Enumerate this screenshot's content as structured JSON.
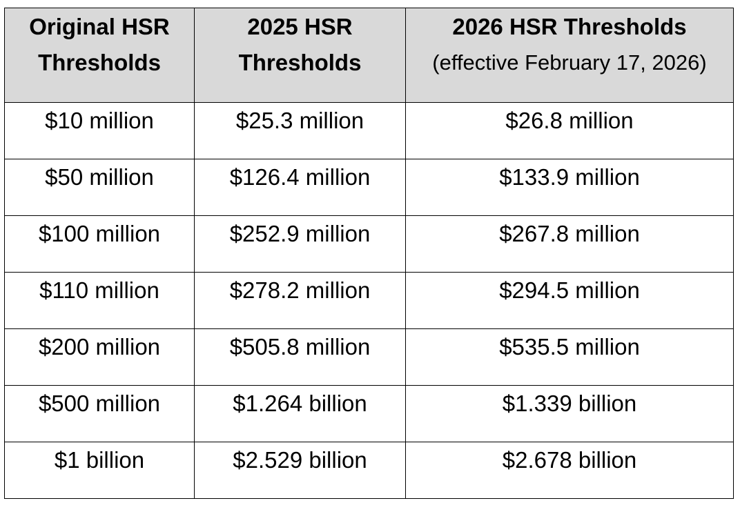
{
  "table": {
    "header": [
      [
        "Original HSR",
        "Thresholds"
      ],
      [
        "2025 HSR",
        "Thresholds"
      ],
      [
        "2026 HSR Thresholds",
        "(effective February 17, 2026)"
      ]
    ],
    "rows": [
      [
        "$10 million",
        "$25.3 million",
        "$26.8 million"
      ],
      [
        "$50 million",
        "$126.4 million",
        "$133.9 million"
      ],
      [
        "$100 million",
        "$252.9 million",
        "$267.8 million"
      ],
      [
        "$110 million",
        "$278.2 million",
        "$294.5 million"
      ],
      [
        "$200 million",
        "$505.8 million",
        "$535.5 million"
      ],
      [
        "$500 million",
        "$1.264 billion",
        "$1.339 billion"
      ],
      [
        "$1 billion",
        "$2.529 billion",
        "$2.678 billion"
      ]
    ]
  }
}
